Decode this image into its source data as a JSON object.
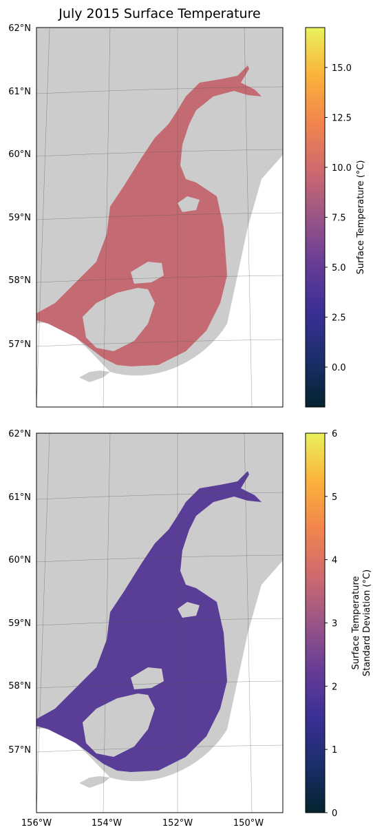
{
  "title": "July 2015 Surface Temperature",
  "map": {
    "lat_labels": [
      "62°N",
      "61°N",
      "60°N",
      "59°N",
      "58°N",
      "57°N"
    ],
    "lon_labels": [
      "156°W",
      "154°W",
      "152°W",
      "150°W"
    ],
    "land_color": "#cccccc",
    "ocean_color": "#ffffff"
  },
  "panels": [
    {
      "id": "mean",
      "colorbar": {
        "label_lines": [
          "Surface Temperature (°C)"
        ],
        "vmin": -2,
        "vmax": 17,
        "ticks": [
          "15.0",
          "12.5",
          "10.0",
          "7.5",
          "5.0",
          "2.5",
          "0.0"
        ],
        "tick_values": [
          15,
          12.5,
          10,
          7.5,
          5,
          2.5,
          0
        ],
        "colormap": "thermal"
      }
    },
    {
      "id": "stdev",
      "colorbar": {
        "label_lines": [
          "Surface Temperature",
          "Standard Deviation (°C)"
        ],
        "vmin": 0,
        "vmax": 6,
        "ticks": [
          "6",
          "5",
          "4",
          "3",
          "2",
          "1",
          "0"
        ],
        "tick_values": [
          6,
          5,
          4,
          3,
          2,
          1,
          0
        ],
        "colormap": "thermal"
      }
    }
  ],
  "colors": {
    "thermal_stops": [
      "#04232e",
      "#1b2e6b",
      "#3a2f95",
      "#663c96",
      "#9a5587",
      "#cf6a6e",
      "#f2854d",
      "#fbb23b",
      "#e9f25c"
    ]
  }
}
